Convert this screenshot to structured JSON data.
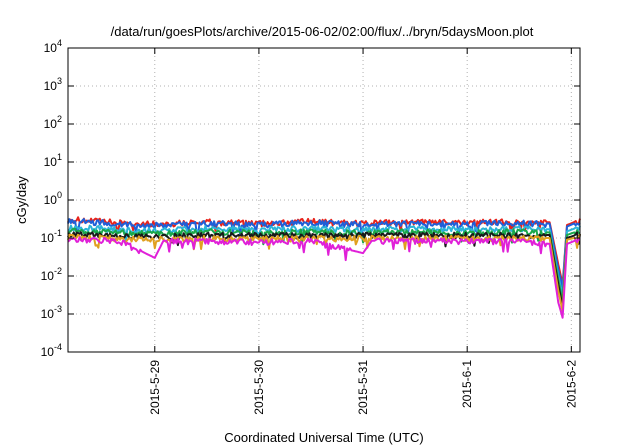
{
  "chart_data": {
    "type": "line",
    "title": "/data/run/goesPlots/archive/2015-06-02/02:00/flux/../bryn/5daysMoon.plot",
    "xlabel": "Coordinated Universal Time (UTC)",
    "ylabel": "cGy/day",
    "y_scale": "log",
    "ylim": [
      0.0001,
      10000
    ],
    "y_ticks": [
      {
        "value": 0.0001,
        "base": "10",
        "exp": "-4"
      },
      {
        "value": 0.001,
        "base": "10",
        "exp": "-3"
      },
      {
        "value": 0.01,
        "base": "10",
        "exp": "-2"
      },
      {
        "value": 0.1,
        "base": "10",
        "exp": "-1"
      },
      {
        "value": 1,
        "base": "10",
        "exp": "0"
      },
      {
        "value": 10,
        "base": "10",
        "exp": "1"
      },
      {
        "value": 100,
        "base": "10",
        "exp": "2"
      },
      {
        "value": 1000,
        "base": "10",
        "exp": "3"
      },
      {
        "value": 10000,
        "base": "10",
        "exp": "4"
      }
    ],
    "xlim": [
      "2015-05-28 04:00",
      "2015-06-02 02:00"
    ],
    "x_ticks": [
      {
        "value": "2015-05-29 00:00",
        "label": "2015-5-29"
      },
      {
        "value": "2015-05-30 00:00",
        "label": "2015-5-30"
      },
      {
        "value": "2015-05-31 00:00",
        "label": "2015-5-31"
      },
      {
        "value": "2015-06-01 00:00",
        "label": "2015-6-1"
      },
      {
        "value": "2015-06-02 00:00",
        "label": "2015-6-2"
      }
    ],
    "grid": true,
    "legend": "none",
    "series": [
      {
        "color": "#e8231b",
        "base": 0.25,
        "points": [
          [
            "2015-05-28 04:00",
            0.32
          ],
          [
            "2015-05-28 16:00",
            0.26
          ],
          [
            "2015-05-29 00:00",
            0.24
          ],
          [
            "2015-05-29 12:00",
            0.27
          ],
          [
            "2015-05-30 00:00",
            0.25
          ],
          [
            "2015-05-30 12:00",
            0.28
          ],
          [
            "2015-05-31 00:00",
            0.25
          ],
          [
            "2015-05-31 12:00",
            0.27
          ],
          [
            "2015-06-01 00:00",
            0.26
          ],
          [
            "2015-06-01 12:00",
            0.28
          ],
          [
            "2015-06-01 19:00",
            0.26
          ],
          [
            "2015-06-01 21:00",
            0.02
          ],
          [
            "2015-06-01 22:00",
            0.006
          ],
          [
            "2015-06-01 23:00",
            0.22
          ],
          [
            "2015-06-02 02:00",
            0.3
          ]
        ]
      },
      {
        "color": "#1f5fd8",
        "base": 0.23,
        "points": [
          [
            "2015-05-28 04:00",
            0.3
          ],
          [
            "2015-05-28 16:00",
            0.24
          ],
          [
            "2015-05-29 00:00",
            0.22
          ],
          [
            "2015-05-29 12:00",
            0.25
          ],
          [
            "2015-05-30 00:00",
            0.23
          ],
          [
            "2015-05-30 12:00",
            0.26
          ],
          [
            "2015-05-31 00:00",
            0.23
          ],
          [
            "2015-05-31 12:00",
            0.25
          ],
          [
            "2015-06-01 00:00",
            0.24
          ],
          [
            "2015-06-01 12:00",
            0.26
          ],
          [
            "2015-06-01 19:00",
            0.24
          ],
          [
            "2015-06-01 21:00",
            0.015
          ],
          [
            "2015-06-01 22:00",
            0.005
          ],
          [
            "2015-06-01 23:00",
            0.2
          ],
          [
            "2015-06-02 02:00",
            0.28
          ]
        ]
      },
      {
        "color": "#2bb5d8",
        "base": 0.17,
        "points": [
          [
            "2015-05-28 04:00",
            0.2
          ],
          [
            "2015-05-28 16:00",
            0.17
          ],
          [
            "2015-05-29 00:00",
            0.16
          ],
          [
            "2015-05-29 12:00",
            0.18
          ],
          [
            "2015-05-30 00:00",
            0.17
          ],
          [
            "2015-05-30 12:00",
            0.18
          ],
          [
            "2015-05-31 00:00",
            0.17
          ],
          [
            "2015-05-31 12:00",
            0.18
          ],
          [
            "2015-06-01 00:00",
            0.17
          ],
          [
            "2015-06-01 12:00",
            0.18
          ],
          [
            "2015-06-01 19:00",
            0.17
          ],
          [
            "2015-06-01 21:00",
            0.01
          ],
          [
            "2015-06-01 22:00",
            0.003
          ],
          [
            "2015-06-01 23:00",
            0.15
          ],
          [
            "2015-06-02 02:00",
            0.2
          ]
        ]
      },
      {
        "color": "#1aa84a",
        "base": 0.14,
        "points": [
          [
            "2015-05-28 04:00",
            0.16
          ],
          [
            "2015-05-28 16:00",
            0.14
          ],
          [
            "2015-05-29 00:00",
            0.13
          ],
          [
            "2015-05-29 12:00",
            0.15
          ],
          [
            "2015-05-30 00:00",
            0.14
          ],
          [
            "2015-05-30 12:00",
            0.15
          ],
          [
            "2015-05-31 00:00",
            0.14
          ],
          [
            "2015-05-31 12:00",
            0.15
          ],
          [
            "2015-06-01 00:00",
            0.14
          ],
          [
            "2015-06-01 12:00",
            0.15
          ],
          [
            "2015-06-01 19:00",
            0.14
          ],
          [
            "2015-06-01 21:00",
            0.008
          ],
          [
            "2015-06-01 22:00",
            0.002
          ],
          [
            "2015-06-01 23:00",
            0.12
          ],
          [
            "2015-06-02 02:00",
            0.16
          ]
        ]
      },
      {
        "color": "#1a1a1a",
        "base": 0.12,
        "points": [
          [
            "2015-05-28 04:00",
            0.13
          ],
          [
            "2015-05-28 16:00",
            0.12
          ],
          [
            "2015-05-29 00:00",
            0.11
          ],
          [
            "2015-05-29 12:00",
            0.12
          ],
          [
            "2015-05-30 00:00",
            0.12
          ],
          [
            "2015-05-30 12:00",
            0.12
          ],
          [
            "2015-05-31 00:00",
            0.12
          ],
          [
            "2015-05-31 12:00",
            0.12
          ],
          [
            "2015-06-01 00:00",
            0.12
          ],
          [
            "2015-06-01 12:00",
            0.12
          ],
          [
            "2015-06-01 19:00",
            0.12
          ],
          [
            "2015-06-01 21:00",
            0.006
          ],
          [
            "2015-06-01 22:00",
            0.0015
          ],
          [
            "2015-06-01 23:00",
            0.1
          ],
          [
            "2015-06-02 02:00",
            0.13
          ]
        ]
      },
      {
        "color": "#e0a020",
        "base": 0.1,
        "points": [
          [
            "2015-05-28 04:00",
            0.11
          ],
          [
            "2015-05-28 16:00",
            0.1
          ],
          [
            "2015-05-29 00:00",
            0.095
          ],
          [
            "2015-05-29 12:00",
            0.1
          ],
          [
            "2015-05-30 00:00",
            0.1
          ],
          [
            "2015-05-30 12:00",
            0.1
          ],
          [
            "2015-05-31 00:00",
            0.1
          ],
          [
            "2015-05-31 12:00",
            0.1
          ],
          [
            "2015-06-01 00:00",
            0.1
          ],
          [
            "2015-06-01 12:00",
            0.1
          ],
          [
            "2015-06-01 19:00",
            0.1
          ],
          [
            "2015-06-01 21:00",
            0.004
          ],
          [
            "2015-06-01 22:00",
            0.0012
          ],
          [
            "2015-06-01 23:00",
            0.09
          ],
          [
            "2015-06-02 02:00",
            0.11
          ]
        ]
      },
      {
        "color": "#e020d8",
        "base": 0.085,
        "points": [
          [
            "2015-05-28 04:00",
            0.1
          ],
          [
            "2015-05-28 16:00",
            0.085
          ],
          [
            "2015-05-29 00:00",
            0.03
          ],
          [
            "2015-05-29 02:00",
            0.085
          ],
          [
            "2015-05-29 12:00",
            0.085
          ],
          [
            "2015-05-30 00:00",
            0.08
          ],
          [
            "2015-05-30 12:00",
            0.085
          ],
          [
            "2015-05-31 00:00",
            0.04
          ],
          [
            "2015-05-31 02:00",
            0.085
          ],
          [
            "2015-05-31 12:00",
            0.085
          ],
          [
            "2015-06-01 00:00",
            0.085
          ],
          [
            "2015-06-01 12:00",
            0.085
          ],
          [
            "2015-06-01 19:00",
            0.07
          ],
          [
            "2015-06-01 21:00",
            0.002
          ],
          [
            "2015-06-01 22:00",
            0.0008
          ],
          [
            "2015-06-01 23:00",
            0.07
          ],
          [
            "2015-06-02 02:00",
            0.095
          ]
        ]
      }
    ]
  }
}
